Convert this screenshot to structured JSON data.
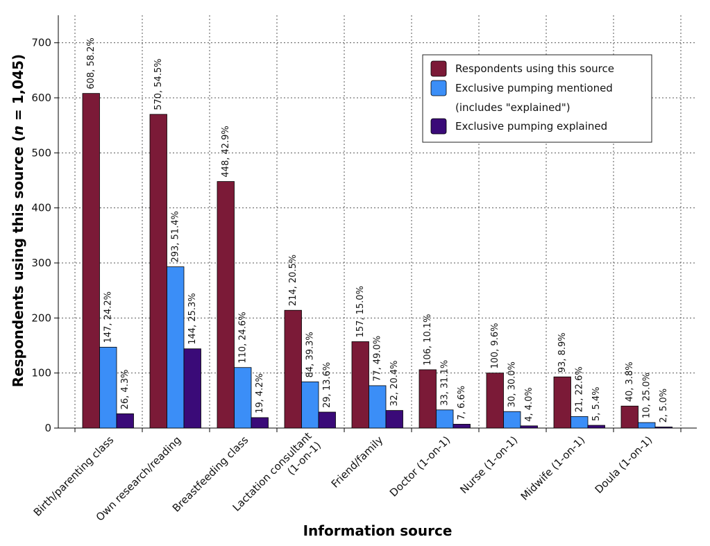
{
  "chart_data": {
    "type": "bar",
    "xlabel": "Information source",
    "ylabel_main": "Respondents using this source (",
    "ylabel_n": "n",
    "ylabel_rest": " = 1,045)",
    "ylim": [
      0,
      750
    ],
    "yticks": [
      0,
      100,
      200,
      300,
      400,
      500,
      600,
      700
    ],
    "grid": true,
    "legend_position": "top-right",
    "categories": [
      "Birth/parenting class",
      "Own research/reading",
      "Breastfeeding class",
      "Lactation consultant\n(1-on-1)",
      "Friend/family",
      "Doctor (1-on-1)",
      "Nurse (1-on-1)",
      "Midwife (1-on-1)",
      "Doula (1-on-1)"
    ],
    "series": [
      {
        "name": "Respondents using this source",
        "color": "#7b1a37",
        "values": [
          608,
          570,
          448,
          214,
          157,
          106,
          100,
          93,
          40
        ],
        "labels": [
          "608, 58.2%",
          "570, 54.5%",
          "448, 42.9%",
          "214, 20.5%",
          "157, 15.0%",
          "106, 10.1%",
          "100, 9.6%",
          "93, 8.9%",
          "40, 3.8%"
        ]
      },
      {
        "name": "Exclusive pumping mentioned\n(includes \"explained\")",
        "color": "#3b8ef7",
        "values": [
          147,
          293,
          110,
          84,
          77,
          33,
          30,
          21,
          10
        ],
        "labels": [
          "147, 24.2%",
          "293, 51.4%",
          "110, 24.6%",
          "84, 39.3%",
          "77, 49.0%",
          "33, 31.1%",
          "30, 30.0%",
          "21, 22.6%",
          "10, 25.0%"
        ]
      },
      {
        "name": "Exclusive pumping explained",
        "color": "#3a0a78",
        "values": [
          26,
          144,
          19,
          29,
          32,
          7,
          4,
          5,
          2
        ],
        "labels": [
          "26, 4.3%",
          "144, 25.3%",
          "19, 4.2%",
          "29, 13.6%",
          "32, 20.4%",
          "7, 6.6%",
          "4, 4.0%",
          "5, 5.4%",
          "2, 5.0%"
        ]
      }
    ]
  }
}
